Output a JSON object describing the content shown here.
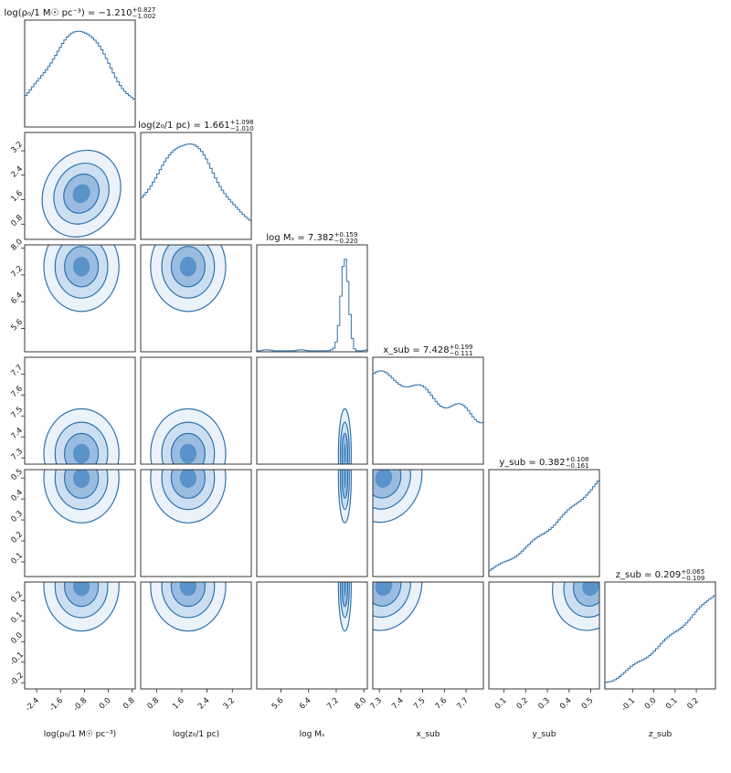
{
  "chart_data": {
    "type": "corner",
    "color": "#2f73ad",
    "fill_color": "#cfe0f2",
    "parameters": [
      {
        "key": "rho0",
        "label": "log(ρ₀/1 M☉ pc⁻³)",
        "title_name": "log(ρ₀/1 M☉ pc⁻³)",
        "median": "−1.210",
        "upper": "+0.827",
        "lower": "−1.002",
        "range": [
          -2.8,
          0.9
        ],
        "ticks": [
          "-2.4",
          "-1.6",
          "-0.8",
          "0.0",
          "0.8"
        ],
        "tick_values": [
          -2.4,
          -1.6,
          -0.8,
          0.0,
          0.8
        ],
        "peak": -0.9,
        "hist_shape": "peaked"
      },
      {
        "key": "z0",
        "label": "log(z₀/1 pc)",
        "title_name": "log(z₀/1 pc)",
        "median": "1.661",
        "upper": "+1.098",
        "lower": "−1.010",
        "range": [
          0.3,
          3.8
        ],
        "ticks": [
          "0.8",
          "1.6",
          "2.4",
          "3.2"
        ],
        "tick_values": [
          0.8,
          1.6,
          2.4,
          3.2
        ],
        "peak": 1.8,
        "hist_shape": "peaked"
      },
      {
        "key": "Ms",
        "label": "log Mₛ",
        "title_name": "log Mₛ",
        "median": "7.382",
        "upper": "+0.159",
        "lower": "−0.220",
        "range": [
          4.9,
          8.1
        ],
        "ticks": [
          "5.6",
          "6.4",
          "7.2",
          "8.0"
        ],
        "tick_values": [
          5.6,
          6.4,
          7.2,
          8.0
        ],
        "peak": 7.45,
        "hist_shape": "narrow"
      },
      {
        "key": "xsub",
        "label": "x_sub",
        "title_name": "x_sub",
        "median": "7.428",
        "upper": "+0.199",
        "lower": "−0.111",
        "range": [
          7.27,
          7.78
        ],
        "ticks": [
          "7.3",
          "7.4",
          "7.5",
          "7.6",
          "7.7"
        ],
        "tick_values": [
          7.3,
          7.4,
          7.5,
          7.6,
          7.7
        ],
        "peak": 7.32,
        "hist_shape": "decreasing"
      },
      {
        "key": "ysub",
        "label": "y_sub",
        "title_name": "y_sub",
        "median": "0.382",
        "upper": "+0.108",
        "lower": "−0.161",
        "range": [
          0.03,
          0.54
        ],
        "ticks": [
          "0.1",
          "0.2",
          "0.3",
          "0.4",
          "0.5"
        ],
        "tick_values": [
          0.1,
          0.2,
          0.3,
          0.4,
          0.5
        ],
        "peak": 0.5,
        "hist_shape": "increasing"
      },
      {
        "key": "zsub",
        "label": "z_sub",
        "title_name": "z_sub",
        "median": "0.209",
        "upper": "+0.065",
        "lower": "−0.109",
        "range": [
          -0.23,
          0.29
        ],
        "ticks": [
          "-0.1",
          "0.0",
          "0.1",
          "0.2"
        ],
        "tick_values": [
          -0.1,
          0.0,
          0.1,
          0.2
        ],
        "peak": 0.27,
        "hist_shape": "increasing"
      }
    ],
    "row_tick_labels": {
      "1": [
        "0.8",
        "1.6",
        "2.4",
        "3.2"
      ],
      "2": [
        "5.6",
        "6.4",
        "7.2",
        "8.0"
      ],
      "3": [
        "7.3",
        "7.4",
        "7.5",
        "7.6",
        "7.7"
      ],
      "4": [
        "0.1",
        "0.2",
        "0.3",
        "0.4",
        "0.5"
      ],
      "5": [
        "-0.2",
        "-0.1",
        "0.0",
        "0.1",
        "0.2"
      ]
    },
    "row_tick_values": {
      "1": [
        0.8,
        1.6,
        2.4,
        3.2
      ],
      "2": [
        5.6,
        6.4,
        7.2,
        8.0
      ],
      "3": [
        7.3,
        7.4,
        7.5,
        7.6,
        7.7
      ],
      "4": [
        0.1,
        0.2,
        0.3,
        0.4,
        0.5
      ],
      "5": [
        -0.2,
        -0.1,
        0.0,
        0.1,
        0.2
      ]
    },
    "row_ranges": {
      "5": [
        -0.23,
        0.29
      ]
    },
    "contour_levels": [
      0.39,
      0.86,
      0.99
    ],
    "correlations": {
      "1,0": -0.8,
      "2,0": 0.0,
      "2,1": 0.0,
      "3,0": 0.0,
      "3,1": 0.0,
      "3,2": 0.0,
      "4,0": 0.0,
      "4,1": 0.0,
      "4,2": 0.0,
      "4,3": -0.5,
      "5,0": 0.0,
      "5,1": 0.0,
      "5,2": 0.0,
      "5,3": -0.5,
      "5,4": -0.5
    }
  }
}
